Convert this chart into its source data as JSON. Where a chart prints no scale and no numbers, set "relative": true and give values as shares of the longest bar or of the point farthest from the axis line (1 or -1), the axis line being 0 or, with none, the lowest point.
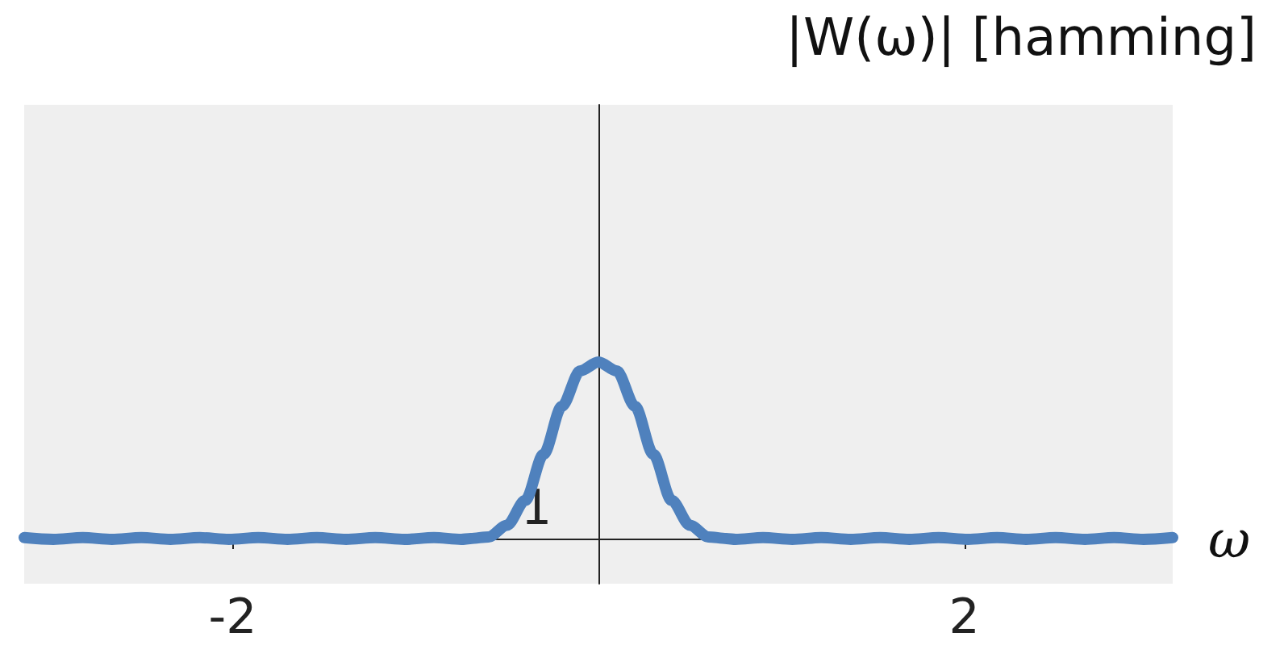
{
  "chart_data": {
    "type": "line",
    "title": "|W(ω)| [hamming]",
    "xlabel": "ω",
    "relative": true,
    "annotations": [
      "1"
    ],
    "x": [
      -3.14,
      -2.98,
      -2.82,
      -2.66,
      -2.5,
      -2.34,
      -2.18,
      -2.02,
      -1.86,
      -1.7,
      -1.54,
      -1.38,
      -1.22,
      -1.06,
      -0.9,
      -0.75,
      -0.7,
      -0.6,
      -0.5,
      -0.4,
      -0.3,
      -0.2,
      -0.1,
      0,
      0.1,
      0.2,
      0.3,
      0.4,
      0.5,
      0.6,
      0.7,
      0.75,
      0.9,
      1.06,
      1.22,
      1.38,
      1.54,
      1.7,
      1.86,
      2.02,
      2.18,
      2.34,
      2.5,
      2.66,
      2.82,
      2.98,
      3.14
    ],
    "series": [
      {
        "color": "#4f81bd",
        "values": [
          0.01,
          0.0,
          0.01,
          0.0,
          0.01,
          0.0,
          0.01,
          0.0,
          0.01,
          0.0,
          0.01,
          0.0,
          0.01,
          0.0,
          0.01,
          0.0,
          0.005,
          0.014,
          0.08,
          0.22,
          0.48,
          0.75,
          0.95,
          1,
          0.95,
          0.75,
          0.48,
          0.22,
          0.08,
          0.014,
          0.005,
          0.0,
          0.01,
          0.0,
          0.01,
          0.0,
          0.01,
          0.0,
          0.01,
          0.0,
          0.01,
          0.0,
          0.01,
          0.0,
          0.01,
          0.0,
          0.01
        ]
      }
    ],
    "xlim": [
      -3.14,
      3.14
    ],
    "xticks": [
      -2,
      2
    ]
  }
}
